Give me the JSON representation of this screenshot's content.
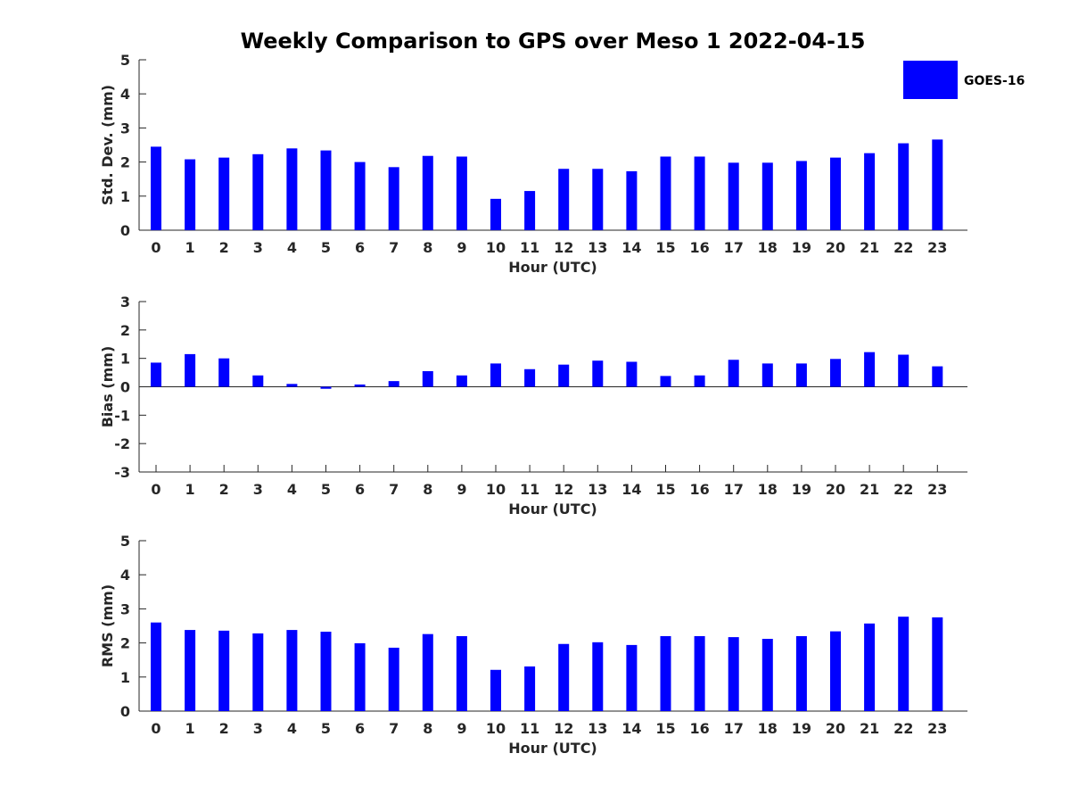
{
  "title": "Weekly Comparison to GPS over Meso 1 2022-04-15",
  "legend": {
    "label": "GOES-16",
    "color": "#0000ff",
    "placement": "top-right"
  },
  "chart_data": [
    {
      "type": "bar",
      "title": "",
      "xlabel": "Hour (UTC)",
      "ylabel": "Std. Dev. (mm)",
      "categories": [
        "0",
        "1",
        "2",
        "3",
        "4",
        "5",
        "6",
        "7",
        "8",
        "9",
        "10",
        "11",
        "12",
        "13",
        "14",
        "15",
        "16",
        "17",
        "18",
        "19",
        "20",
        "21",
        "22",
        "23"
      ],
      "ylim": [
        0,
        5
      ],
      "yticks": [
        0,
        1,
        2,
        3,
        4,
        5
      ],
      "series": [
        {
          "name": "GOES-16",
          "values": [
            2.45,
            2.08,
            2.13,
            2.23,
            2.4,
            2.34,
            2.0,
            1.85,
            2.18,
            2.16,
            0.92,
            1.15,
            1.8,
            1.8,
            1.73,
            2.16,
            2.16,
            1.98,
            1.98,
            2.03,
            2.13,
            2.26,
            2.55,
            2.66
          ]
        }
      ]
    },
    {
      "type": "bar",
      "title": "",
      "xlabel": "Hour (UTC)",
      "ylabel": "Bias (mm)",
      "categories": [
        "0",
        "1",
        "2",
        "3",
        "4",
        "5",
        "6",
        "7",
        "8",
        "9",
        "10",
        "11",
        "12",
        "13",
        "14",
        "15",
        "16",
        "17",
        "18",
        "19",
        "20",
        "21",
        "22",
        "23"
      ],
      "ylim": [
        -3,
        3
      ],
      "yticks": [
        -3,
        -2,
        -1,
        0,
        1,
        2,
        3
      ],
      "series": [
        {
          "name": "GOES-16",
          "values": [
            0.85,
            1.15,
            1.0,
            0.4,
            0.1,
            -0.07,
            0.08,
            0.2,
            0.55,
            0.4,
            0.82,
            0.62,
            0.78,
            0.92,
            0.88,
            0.38,
            0.4,
            0.95,
            0.82,
            0.82,
            0.98,
            1.22,
            1.13,
            0.72
          ]
        }
      ]
    },
    {
      "type": "bar",
      "title": "",
      "xlabel": "Hour (UTC)",
      "ylabel": "RMS (mm)",
      "categories": [
        "0",
        "1",
        "2",
        "3",
        "4",
        "5",
        "6",
        "7",
        "8",
        "9",
        "10",
        "11",
        "12",
        "13",
        "14",
        "15",
        "16",
        "17",
        "18",
        "19",
        "20",
        "21",
        "22",
        "23"
      ],
      "ylim": [
        0,
        5
      ],
      "yticks": [
        0,
        1,
        2,
        3,
        4,
        5
      ],
      "series": [
        {
          "name": "GOES-16",
          "values": [
            2.6,
            2.38,
            2.36,
            2.28,
            2.38,
            2.33,
            1.99,
            1.86,
            2.26,
            2.2,
            1.21,
            1.31,
            1.97,
            2.02,
            1.94,
            2.2,
            2.2,
            2.17,
            2.12,
            2.2,
            2.34,
            2.57,
            2.77,
            2.75
          ]
        }
      ]
    }
  ]
}
